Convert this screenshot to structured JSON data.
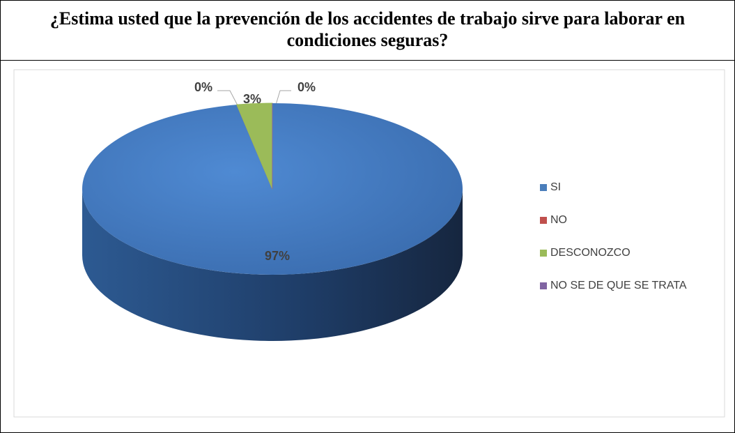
{
  "chart_data": {
    "type": "pie",
    "title": "¿Estima usted que la prevención de los accidentes de trabajo sirve para laborar en condiciones seguras?",
    "categories": [
      "SI",
      "NO",
      "DESCONOZCO",
      "NO SE DE QUE SE TRATA"
    ],
    "values": [
      97,
      0,
      3,
      0
    ],
    "value_labels": [
      "97%",
      "0%",
      "3%",
      "0%"
    ],
    "colors": [
      "#4a7ebb",
      "#c0504d",
      "#9bbb59",
      "#8064a2"
    ]
  }
}
